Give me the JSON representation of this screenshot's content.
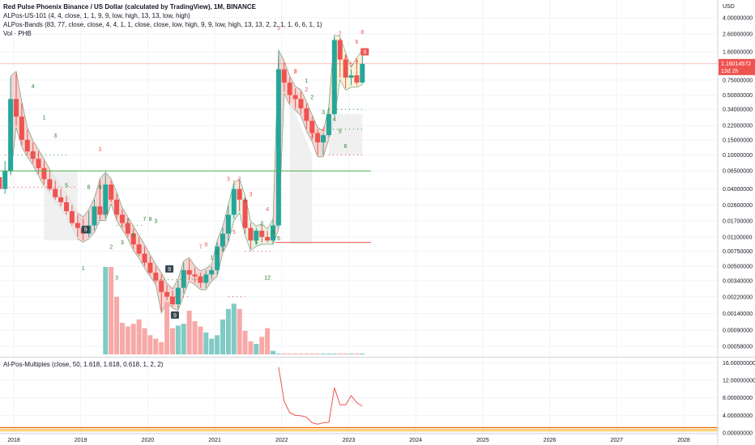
{
  "legend": {
    "title": "Red Pulse Phoenix Binance / US Dollar (calculated by TradingView), 1M, BINANCE",
    "line2": "ALPos-US-101 (4, 4, close, 1, 1, 9, 9, low, high, 13, 13, low, high)",
    "line3": "ALPos-Bands (83, 77, close, close, 4, 4, 1, 1, close, close, low, high, 9, 9, low, high, 13, 13, 2, 2, 1, 1, 6, 6, 1, 1)",
    "line4": "Vol · PHB"
  },
  "indicator_legend": "Al-Pos-Multiples (close, 50, 1.618, 1.618, 0.618, 1, 2, 2)",
  "axis": {
    "currency": "USD",
    "price_ticks": [
      "4.00000000",
      "2.60000000",
      "1.60000000",
      "1.16014572",
      "0.75000000",
      "0.50000000",
      "0.34000000",
      "0.22000000",
      "0.15000000",
      "0.10000000",
      "0.06500000",
      "0.04000000",
      "0.02600000",
      "0.01700000",
      "0.01100000",
      "0.00750000",
      "0.00500000",
      "0.00340000",
      "0.00220000",
      "0.00140000",
      "0.00090000",
      "0.00058000"
    ],
    "last_price": "1.16014572",
    "last_price_countdown": "13d 2h",
    "indicator_ticks": [
      "16.00000000",
      "12.00000000",
      "8.00000000",
      "4.00000000",
      "0.00000000"
    ],
    "time_labels": [
      "2018",
      "2019",
      "2020",
      "2021",
      "2022",
      "2023",
      "2024",
      "2025",
      "2026",
      "2027",
      "2028"
    ]
  },
  "colors": {
    "up": "#26a69a",
    "down": "#ef5350",
    "vol_up": "#80cbc4",
    "vol_down": "#f7a9a7",
    "band_fill_red": "#f2c7c3",
    "band_fill_green": "#dcecd6",
    "grid": "#f0f3fa",
    "multiples_line": "#ef5350",
    "price_line": "#ef5350"
  },
  "signals": {
    "nine_tags": [
      "9",
      "9",
      "9",
      "9"
    ],
    "red_counts": [
      "2",
      "3",
      "3",
      "2",
      "1",
      "2",
      "3",
      "4",
      "5",
      "7",
      "9",
      "2",
      "4",
      "3",
      "5",
      "1",
      "2",
      "3",
      "5",
      "6",
      "8",
      "3",
      "5"
    ],
    "green_counts": [
      "4",
      "1",
      "3",
      "5",
      "8",
      "2",
      "3",
      "5",
      "7",
      "3",
      "1",
      "2",
      "3",
      "5",
      "1",
      "2",
      "3",
      "4",
      "5",
      "6",
      "12",
      "1",
      "2",
      "3",
      "5",
      "7",
      "8"
    ],
    "plain_counts": [
      "1",
      "3",
      "8"
    ]
  },
  "chart_data": [
    {
      "type": "candlestick",
      "title": "Red Pulse Phoenix Binance / US Dollar (calculated by TradingView), 1M, BINANCE",
      "scale": "log",
      "currency": "USD",
      "ylim": [
        0.0005,
        5.0
      ],
      "x": [
        "2017-09",
        "2017-10",
        "2017-11",
        "2017-12",
        "2018-01",
        "2018-02",
        "2018-03",
        "2018-04",
        "2018-05",
        "2018-06",
        "2018-07",
        "2018-08",
        "2018-09",
        "2018-10",
        "2018-11",
        "2018-12",
        "2019-01",
        "2019-02",
        "2019-03",
        "2019-04",
        "2019-05",
        "2019-06",
        "2019-07",
        "2019-08",
        "2019-09",
        "2019-10",
        "2019-11",
        "2019-12",
        "2020-01",
        "2020-02",
        "2020-03",
        "2020-04",
        "2020-05",
        "2020-06",
        "2020-07",
        "2020-08",
        "2020-09",
        "2020-10",
        "2020-11",
        "2020-12",
        "2021-01",
        "2021-02",
        "2021-03",
        "2021-04",
        "2021-05",
        "2021-06",
        "2021-07",
        "2021-08",
        "2021-09",
        "2021-10",
        "2021-11",
        "2021-12",
        "2022-01",
        "2022-02",
        "2022-03",
        "2022-04",
        "2022-05",
        "2022-06",
        "2022-07",
        "2022-08",
        "2022-09",
        "2022-10",
        "2022-11",
        "2022-12",
        "2023-01",
        "2023-02",
        "2023-03"
      ],
      "open": [
        0.06,
        0.055,
        0.04,
        0.065,
        0.45,
        0.28,
        0.15,
        0.11,
        0.09,
        0.07,
        0.052,
        0.04,
        0.032,
        0.028,
        0.022,
        0.016,
        0.014,
        0.012,
        0.015,
        0.025,
        0.02,
        0.045,
        0.03,
        0.02,
        0.016,
        0.012,
        0.009,
        0.007,
        0.0055,
        0.0042,
        0.0034,
        0.0025,
        0.0022,
        0.0018,
        0.0028,
        0.0045,
        0.004,
        0.0038,
        0.0032,
        0.004,
        0.0045,
        0.0085,
        0.012,
        0.02,
        0.04,
        0.03,
        0.014,
        0.01,
        0.013,
        0.011,
        0.01,
        0.015,
        1.0,
        0.7,
        0.5,
        0.45,
        0.35,
        0.25,
        0.18,
        0.14,
        0.17,
        0.3,
        2.2,
        1.3,
        0.8,
        0.85,
        0.7
      ],
      "high": [
        0.075,
        0.07,
        0.085,
        0.8,
        0.9,
        0.4,
        0.2,
        0.14,
        0.11,
        0.085,
        0.065,
        0.05,
        0.04,
        0.033,
        0.026,
        0.02,
        0.018,
        0.022,
        0.03,
        0.05,
        0.06,
        0.05,
        0.035,
        0.023,
        0.018,
        0.014,
        0.011,
        0.0085,
        0.0065,
        0.005,
        0.004,
        0.003,
        0.0026,
        0.0034,
        0.0055,
        0.006,
        0.0048,
        0.0042,
        0.0045,
        0.005,
        0.0095,
        0.014,
        0.025,
        0.045,
        0.05,
        0.032,
        0.016,
        0.014,
        0.015,
        0.013,
        0.017,
        1.6,
        1.2,
        0.8,
        0.6,
        0.55,
        0.4,
        0.28,
        0.2,
        0.18,
        0.35,
        2.4,
        2.3,
        1.5,
        1.0,
        1.3,
        1.6
      ],
      "low": [
        0.04,
        0.03,
        0.035,
        0.06,
        0.22,
        0.13,
        0.1,
        0.08,
        0.06,
        0.045,
        0.038,
        0.03,
        0.025,
        0.02,
        0.015,
        0.011,
        0.01,
        0.011,
        0.013,
        0.018,
        0.018,
        0.028,
        0.018,
        0.014,
        0.011,
        0.008,
        0.0065,
        0.005,
        0.004,
        0.0032,
        0.0015,
        0.002,
        0.0017,
        0.0016,
        0.0024,
        0.0035,
        0.0032,
        0.0028,
        0.0028,
        0.0035,
        0.004,
        0.0075,
        0.01,
        0.018,
        0.022,
        0.012,
        0.008,
        0.009,
        0.0095,
        0.0095,
        0.0095,
        0.014,
        0.55,
        0.4,
        0.35,
        0.3,
        0.2,
        0.15,
        0.1,
        0.1,
        0.16,
        0.28,
        0.8,
        0.6,
        0.65,
        0.65,
        0.7
      ],
      "close": [
        0.055,
        0.04,
        0.065,
        0.45,
        0.28,
        0.15,
        0.11,
        0.09,
        0.07,
        0.052,
        0.04,
        0.032,
        0.028,
        0.022,
        0.016,
        0.014,
        0.012,
        0.015,
        0.025,
        0.02,
        0.045,
        0.03,
        0.02,
        0.016,
        0.012,
        0.009,
        0.007,
        0.0055,
        0.0042,
        0.0034,
        0.0025,
        0.0022,
        0.0018,
        0.0028,
        0.0045,
        0.004,
        0.0038,
        0.0032,
        0.004,
        0.0045,
        0.0085,
        0.012,
        0.02,
        0.04,
        0.03,
        0.014,
        0.01,
        0.013,
        0.011,
        0.01,
        0.015,
        1.0,
        0.7,
        0.5,
        0.45,
        0.35,
        0.25,
        0.18,
        0.14,
        0.17,
        0.3,
        2.2,
        1.3,
        0.8,
        0.85,
        0.7,
        1.16
      ],
      "volume": [
        0,
        0,
        0,
        0,
        0,
        0,
        0,
        0,
        0,
        0,
        0,
        0,
        0,
        0,
        0,
        0,
        0,
        0,
        0,
        0,
        0,
        0,
        0,
        0,
        0,
        0,
        0,
        0,
        0,
        0,
        0,
        0,
        0,
        0,
        0,
        0,
        0,
        0,
        0,
        0,
        0,
        0,
        0,
        0,
        0,
        0,
        0,
        0,
        0,
        0,
        0,
        0,
        0,
        0,
        0,
        0,
        0,
        0,
        0,
        0,
        0,
        0,
        0,
        0,
        0,
        0,
        0
      ],
      "last_price": 1.16014572
    },
    {
      "type": "bar",
      "title": "Vol · PHB",
      "x": [
        "2019-05",
        "2019-06",
        "2019-07",
        "2019-08",
        "2019-09",
        "2019-10",
        "2019-11",
        "2019-12",
        "2020-01",
        "2020-02",
        "2020-03",
        "2020-04",
        "2020-05",
        "2020-06",
        "2020-07",
        "2020-08",
        "2020-09",
        "2020-10",
        "2020-11",
        "2020-12",
        "2021-01",
        "2021-02",
        "2021-03",
        "2021-04",
        "2021-05",
        "2021-06",
        "2021-07",
        "2021-08",
        "2021-09",
        "2021-10",
        "2021-11",
        "2021-12",
        "2022-01",
        "2022-02",
        "2022-03",
        "2022-04",
        "2022-05",
        "2022-06",
        "2022-07",
        "2022-08",
        "2022-09",
        "2022-10",
        "2022-11",
        "2022-12",
        "2023-01",
        "2023-02",
        "2023-03"
      ],
      "values": [
        100,
        100,
        66,
        36,
        32,
        35,
        40,
        30,
        22,
        18,
        14,
        60,
        30,
        33,
        35,
        50,
        38,
        32,
        25,
        18,
        22,
        40,
        52,
        58,
        52,
        27,
        15,
        12,
        20,
        30,
        4,
        1,
        1,
        1,
        1,
        1,
        1,
        1,
        1,
        1,
        1,
        1,
        1,
        1,
        1,
        1,
        1
      ],
      "unit": "relative"
    },
    {
      "type": "line",
      "title": "Al-Pos-Multiples (close, 50, 1.618, 1.618, 0.618, 1, 2, 2)",
      "x": [
        "2021-12",
        "2022-01",
        "2022-02",
        "2022-03",
        "2022-04",
        "2022-05",
        "2022-06",
        "2022-07",
        "2022-08",
        "2022-09",
        "2022-10",
        "2022-11",
        "2022-12",
        "2023-01",
        "2023-02",
        "2023-03"
      ],
      "values": [
        15.0,
        7.2,
        4.6,
        4.0,
        3.9,
        3.6,
        2.3,
        2.0,
        2.3,
        2.4,
        10.3,
        6.4,
        6.4,
        8.5,
        6.9,
        6.1
      ],
      "ylim": [
        0,
        17
      ],
      "ticks": [
        16,
        12,
        8,
        4,
        0
      ]
    }
  ]
}
